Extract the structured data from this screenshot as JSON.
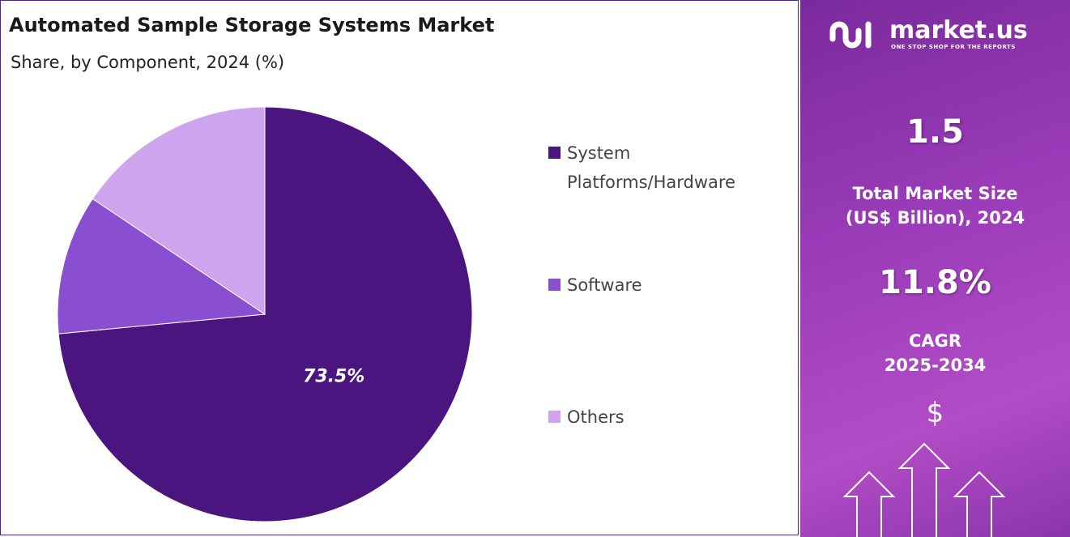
{
  "chart_data": {
    "type": "pie",
    "title": "Automated Sample Storage Systems Market",
    "subtitle": "Share, by Component, 2024 (%)",
    "categories": [
      "System Platforms/Hardware",
      "Software",
      "Others"
    ],
    "values": [
      73.5,
      10.9,
      15.6
    ],
    "value_labels": [
      "73.5%",
      null,
      null
    ],
    "colors": [
      "#4b1580",
      "#8a4fd0",
      "#cfa4ee"
    ],
    "legend": "right"
  },
  "side_panel": {
    "brand": "market.us",
    "tagline": "ONE STOP SHOP FOR THE REPORTS",
    "market_size": "1.5",
    "market_size_label": "Total Market Size (US$ Billion), 2024",
    "cagr": "11.8%",
    "cagr_label": "CAGR",
    "cagr_period": "2025-2034",
    "currency": "$"
  }
}
